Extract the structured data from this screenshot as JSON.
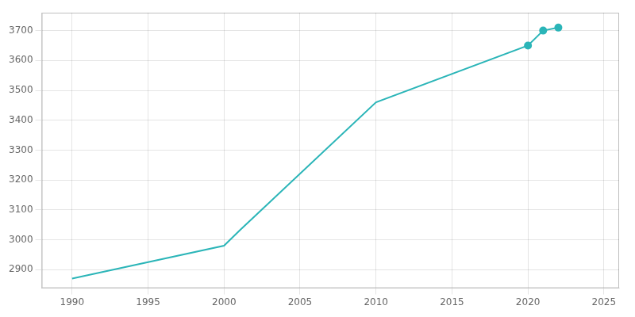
{
  "chart_data": {
    "type": "line",
    "x": [
      1990,
      2000,
      2001,
      2010,
      2020,
      2021,
      2022
    ],
    "series": [
      {
        "color": "#2bb5b8",
        "marker": "none",
        "line_style": "solid",
        "values": [
          2870,
          2980,
          3030,
          3460,
          3650,
          3700,
          3710
        ]
      },
      {
        "type": "scatter",
        "color": "#2bb5b8",
        "marker": "circle",
        "line_style": "none",
        "x": [
          2020,
          2021,
          2022
        ],
        "values": [
          3650,
          3700,
          3710
        ]
      }
    ],
    "xlim": [
      1988,
      2026
    ],
    "ylim": [
      2838,
      3760
    ],
    "xticks": [
      1990,
      1995,
      2000,
      2005,
      2010,
      2015,
      2020,
      2025
    ],
    "yticks": [
      2900,
      3000,
      3100,
      3200,
      3300,
      3400,
      3500,
      3600,
      3700
    ],
    "grid": true
  }
}
